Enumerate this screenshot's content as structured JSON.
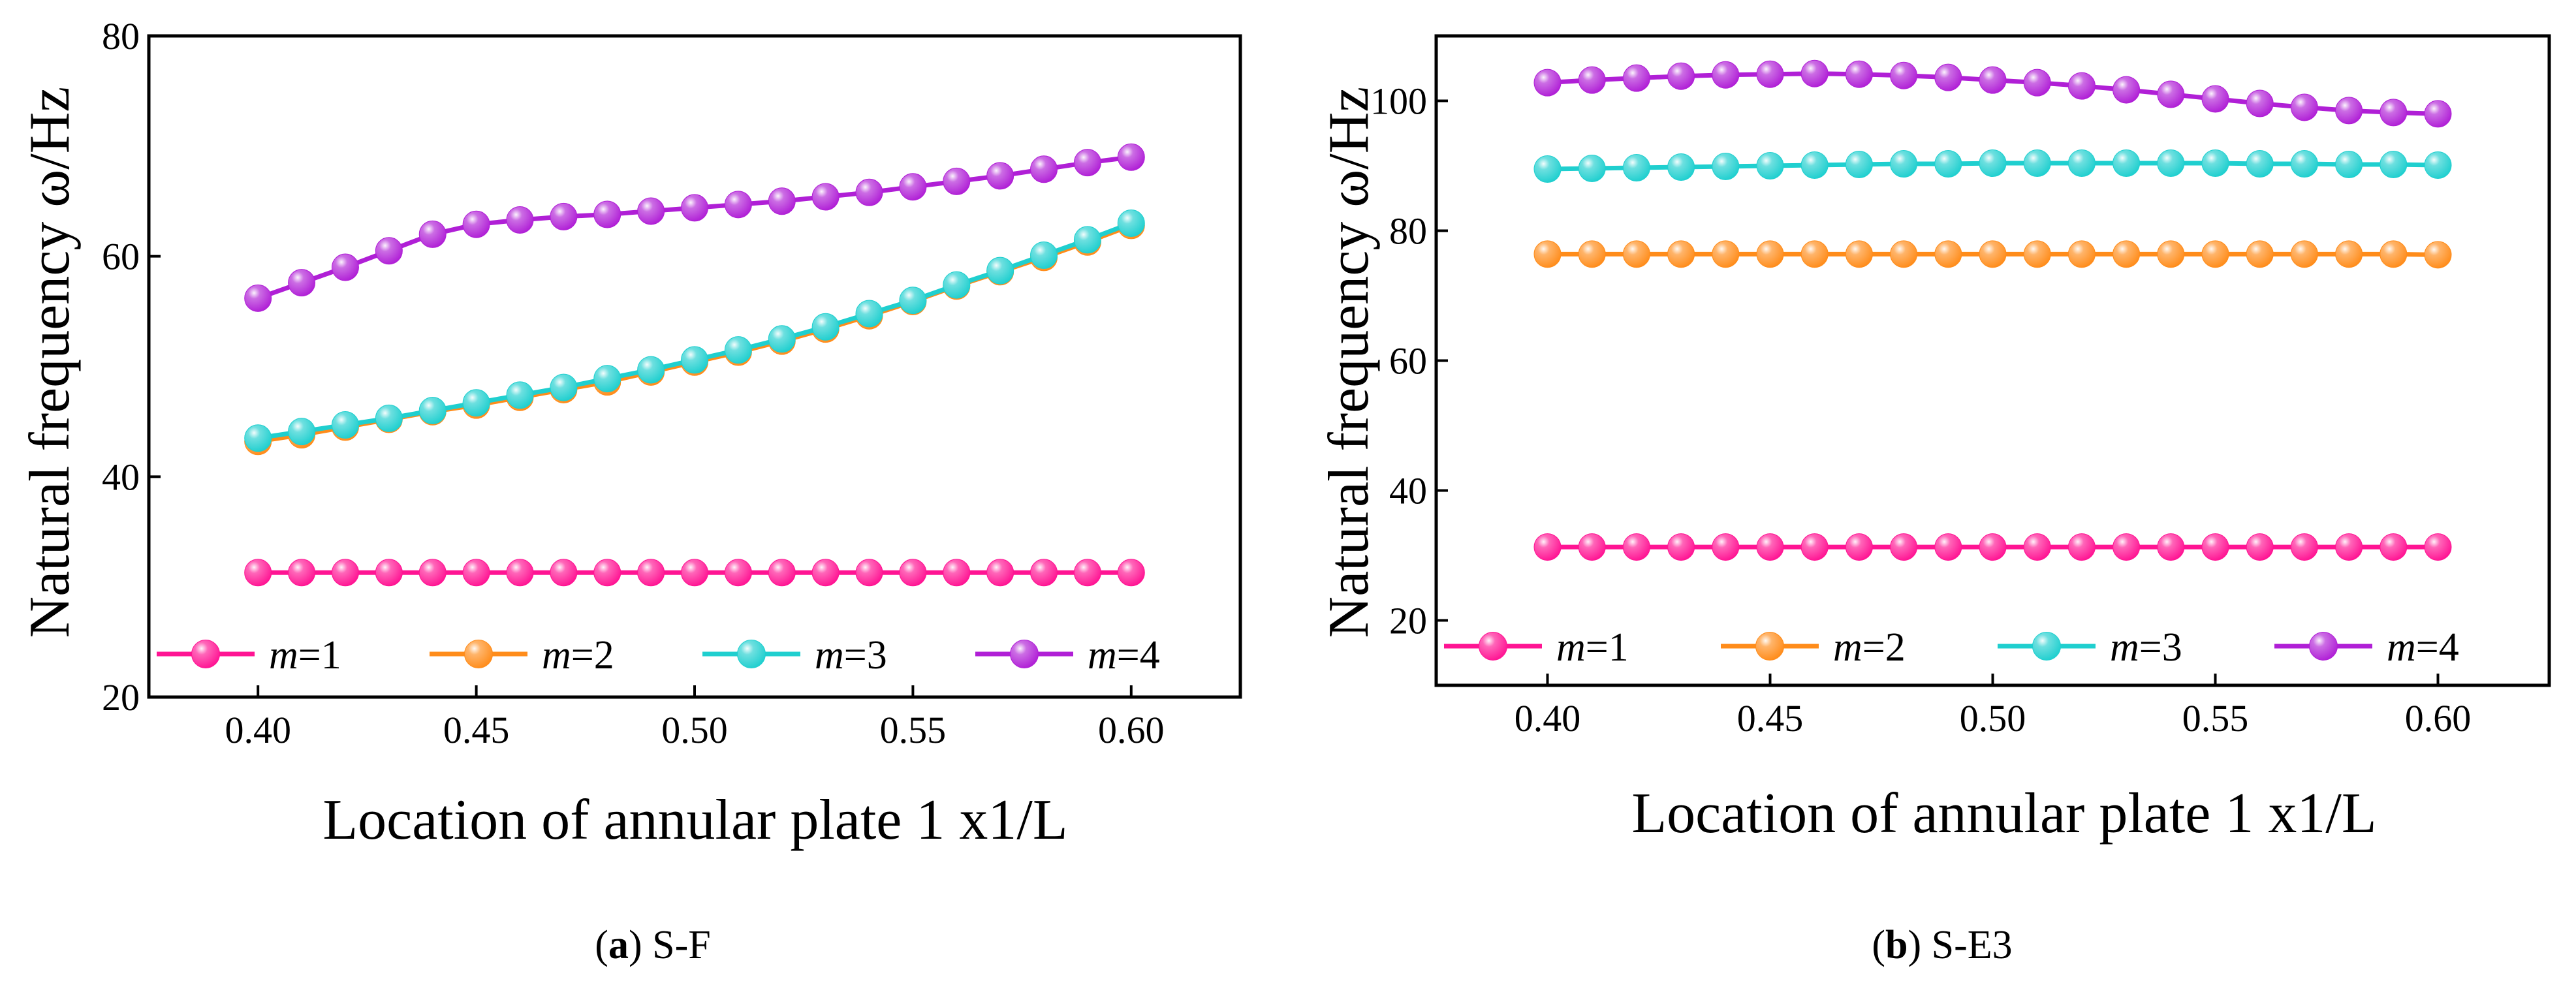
{
  "panels": [
    {
      "caption_letter": "a",
      "caption_text": "S-F",
      "chart_data": {
        "type": "line",
        "x": [
          0.4,
          0.41,
          0.42,
          0.43,
          0.44,
          0.45,
          0.46,
          0.47,
          0.48,
          0.49,
          0.5,
          0.51,
          0.52,
          0.53,
          0.54,
          0.55,
          0.56,
          0.57,
          0.58,
          0.59,
          0.6
        ],
        "xlim": [
          0.375,
          0.625
        ],
        "xticks": [
          0.4,
          0.45,
          0.5,
          0.55,
          0.6
        ],
        "xtick_labels": [
          "0.40",
          "0.45",
          "0.50",
          "0.55",
          "0.60"
        ],
        "ylim": [
          20,
          80
        ],
        "yticks": [
          20,
          40,
          60,
          80
        ],
        "ytick_labels": [
          "20",
          "40",
          "60",
          "80"
        ],
        "xlabel": "Location of annular plate 1 x1/L",
        "ylabel": "Natural frequency ω/Hz",
        "legend_position": "bottom",
        "series": [
          {
            "name": "m=1",
            "color": "#ff1493",
            "values": [
              31.3,
              31.3,
              31.3,
              31.3,
              31.3,
              31.3,
              31.3,
              31.3,
              31.3,
              31.3,
              31.3,
              31.3,
              31.3,
              31.3,
              31.3,
              31.3,
              31.3,
              31.3,
              31.3,
              31.3,
              31.3
            ]
          },
          {
            "name": "m=2",
            "color": "#ff8c1a",
            "values": [
              43.2,
              43.8,
              44.5,
              45.2,
              45.9,
              46.5,
              47.2,
              47.9,
              48.6,
              49.5,
              50.4,
              51.3,
              52.3,
              53.4,
              54.6,
              55.9,
              57.3,
              58.6,
              59.9,
              61.3,
              62.8
            ]
          },
          {
            "name": "m=3",
            "color": "#1fcfcf",
            "values": [
              43.5,
              44.1,
              44.7,
              45.3,
              46.0,
              46.7,
              47.4,
              48.1,
              48.9,
              49.7,
              50.6,
              51.5,
              52.5,
              53.6,
              54.8,
              56.0,
              57.4,
              58.7,
              60.1,
              61.5,
              63.0
            ]
          },
          {
            "name": "m=4",
            "color": "#b01fd6",
            "values": [
              56.2,
              57.6,
              59.0,
              60.5,
              62.0,
              62.9,
              63.3,
              63.6,
              63.8,
              64.1,
              64.4,
              64.7,
              65.0,
              65.4,
              65.8,
              66.3,
              66.8,
              67.3,
              67.9,
              68.5,
              69.0
            ]
          }
        ]
      }
    },
    {
      "caption_letter": "b",
      "caption_text": "S-E3",
      "chart_data": {
        "type": "line",
        "x": [
          0.4,
          0.41,
          0.42,
          0.43,
          0.44,
          0.45,
          0.46,
          0.47,
          0.48,
          0.49,
          0.5,
          0.51,
          0.52,
          0.53,
          0.54,
          0.55,
          0.56,
          0.57,
          0.58,
          0.59,
          0.6
        ],
        "xlim": [
          0.375,
          0.625
        ],
        "xticks": [
          0.4,
          0.45,
          0.5,
          0.55,
          0.6
        ],
        "xtick_labels": [
          "0.40",
          "0.45",
          "0.50",
          "0.55",
          "0.60"
        ],
        "ylim": [
          10,
          110
        ],
        "yticks": [
          20,
          40,
          60,
          80,
          100
        ],
        "ytick_labels": [
          "20",
          "40",
          "60",
          "80",
          "100"
        ],
        "xlabel": "Location of annular plate 1 x1/L",
        "ylabel": "Natural frequency ω/Hz",
        "legend_position": "bottom",
        "series": [
          {
            "name": "m=1",
            "color": "#ff1493",
            "values": [
              31.3,
              31.3,
              31.3,
              31.3,
              31.3,
              31.3,
              31.3,
              31.3,
              31.3,
              31.3,
              31.3,
              31.3,
              31.3,
              31.3,
              31.3,
              31.3,
              31.3,
              31.3,
              31.3,
              31.3,
              31.3
            ]
          },
          {
            "name": "m=2",
            "color": "#ff8c1a",
            "values": [
              76.4,
              76.4,
              76.4,
              76.4,
              76.4,
              76.4,
              76.4,
              76.4,
              76.4,
              76.4,
              76.4,
              76.4,
              76.4,
              76.4,
              76.4,
              76.4,
              76.4,
              76.4,
              76.4,
              76.4,
              76.3
            ]
          },
          {
            "name": "m=3",
            "color": "#1fcfcf",
            "values": [
              89.5,
              89.6,
              89.7,
              89.8,
              89.9,
              90.0,
              90.1,
              90.2,
              90.3,
              90.3,
              90.4,
              90.4,
              90.4,
              90.4,
              90.4,
              90.4,
              90.3,
              90.3,
              90.2,
              90.2,
              90.1
            ]
          },
          {
            "name": "m=4",
            "color": "#b01fd6",
            "values": [
              102.8,
              103.2,
              103.5,
              103.8,
              104.0,
              104.1,
              104.2,
              104.1,
              103.9,
              103.6,
              103.2,
              102.8,
              102.3,
              101.7,
              101.0,
              100.3,
              99.6,
              99.0,
              98.5,
              98.2,
              98.0
            ]
          }
        ]
      }
    }
  ]
}
